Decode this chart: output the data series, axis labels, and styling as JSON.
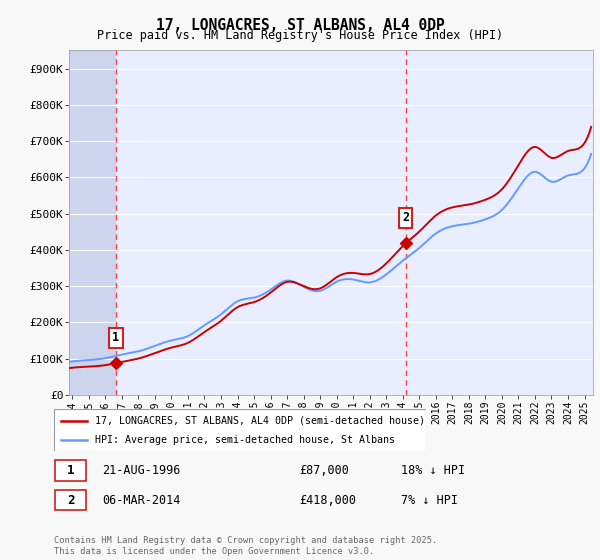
{
  "title1": "17, LONGACRES, ST ALBANS, AL4 0DP",
  "title2": "Price paid vs. HM Land Registry's House Price Index (HPI)",
  "ylim": [
    0,
    950000
  ],
  "yticks": [
    0,
    100000,
    200000,
    300000,
    400000,
    500000,
    600000,
    700000,
    800000,
    900000
  ],
  "ytick_labels": [
    "£0",
    "£100K",
    "£200K",
    "£300K",
    "£400K",
    "£500K",
    "£600K",
    "£700K",
    "£800K",
    "£900K"
  ],
  "xlim_start": 1993.8,
  "xlim_end": 2025.5,
  "plot_bg": "#e8eeff",
  "grid_color": "#ffffff",
  "hpi_color": "#6699ff",
  "price_color": "#cc0000",
  "dashed_line_color": "#ff4444",
  "transaction1_x": 1996.64,
  "transaction1_y": 87000,
  "transaction2_x": 2014.17,
  "transaction2_y": 418000,
  "legend_label1": "17, LONGACRES, ST ALBANS, AL4 0DP (semi-detached house)",
  "legend_label2": "HPI: Average price, semi-detached house, St Albans",
  "note1_num": "1",
  "note1_date": "21-AUG-1996",
  "note1_price": "£87,000",
  "note1_hpi": "18% ↓ HPI",
  "note2_num": "2",
  "note2_date": "06-MAR-2014",
  "note2_price": "£418,000",
  "note2_hpi": "7% ↓ HPI",
  "footer": "Contains HM Land Registry data © Crown copyright and database right 2025.\nThis data is licensed under the Open Government Licence v3.0.",
  "years_hpi": [
    1993.5,
    1994,
    1995,
    1996,
    1997,
    1998,
    1999,
    2000,
    2001,
    2002,
    2003,
    2004,
    2005,
    2006,
    2007,
    2008,
    2009,
    2010,
    2011,
    2012,
    2013,
    2014,
    2015,
    2016,
    2017,
    2018,
    2019,
    2020,
    2021,
    2022,
    2023,
    2024,
    2025,
    2025.5
  ],
  "hpi_values": [
    88000,
    92000,
    96000,
    101000,
    111000,
    120000,
    135000,
    150000,
    162000,
    192000,
    222000,
    258000,
    268000,
    290000,
    315000,
    298000,
    287000,
    312000,
    318000,
    310000,
    332000,
    370000,
    405000,
    445000,
    465000,
    472000,
    484000,
    510000,
    570000,
    615000,
    588000,
    605000,
    625000,
    680000
  ]
}
